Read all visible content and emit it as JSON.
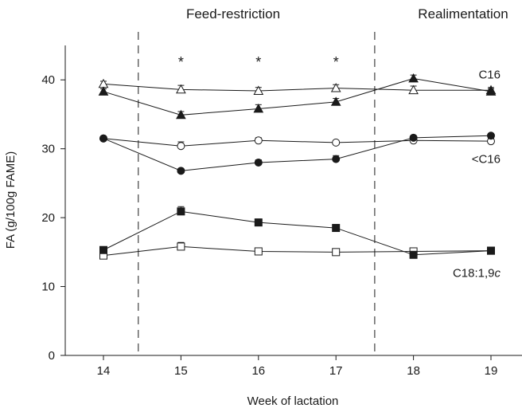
{
  "chart_data": {
    "type": "line",
    "xlabel": "Week of lactation",
    "ylabel": "FA (g/100g FAME)",
    "x": [
      14,
      15,
      16,
      17,
      18,
      19
    ],
    "xlim": [
      13.5,
      19.5
    ],
    "ylim": [
      0,
      45
    ],
    "x_ticks": [
      "14",
      "15",
      "16",
      "17",
      "18",
      "19"
    ],
    "y_ticks": [
      "0",
      "10",
      "20",
      "30",
      "40"
    ],
    "grid": false,
    "phases": [
      {
        "label": "Feed-restriction",
        "start": 14.45,
        "end": 17.5
      },
      {
        "label": "Realimentation",
        "start": 17.5,
        "end": 19.5
      }
    ],
    "significance": [
      {
        "x": 15,
        "label": "*"
      },
      {
        "x": 16,
        "label": "*"
      },
      {
        "x": 17,
        "label": "*"
      }
    ],
    "series": [
      {
        "marker": "triangle",
        "filled": false,
        "values": [
          39.4,
          38.6,
          38.4,
          38.8,
          38.5,
          38.5
        ],
        "err": [
          0.4,
          0.6,
          0.5,
          0.5,
          0.6,
          0.4
        ]
      },
      {
        "marker": "triangle",
        "filled": true,
        "values": [
          38.3,
          34.9,
          35.8,
          36.8,
          40.2,
          38.3
        ],
        "err": [
          0.4,
          0.5,
          0.6,
          0.5,
          0.5,
          0.4
        ]
      },
      {
        "marker": "circle",
        "filled": false,
        "values": [
          31.5,
          30.4,
          31.2,
          30.9,
          31.2,
          31.1
        ],
        "err": [
          0.3,
          0.6,
          0.4,
          0.3,
          0.4,
          0.4
        ]
      },
      {
        "marker": "circle",
        "filled": true,
        "values": [
          31.5,
          26.8,
          28.0,
          28.5,
          31.6,
          31.9
        ],
        "err": [
          0.3,
          0.3,
          0.4,
          0.5,
          0.3,
          0.3
        ]
      },
      {
        "marker": "square",
        "filled": false,
        "values": [
          14.5,
          15.8,
          15.1,
          15.0,
          15.1,
          15.2
        ],
        "err": [
          0.3,
          0.6,
          0.3,
          0.3,
          0.3,
          0.3
        ]
      },
      {
        "marker": "square",
        "filled": true,
        "values": [
          15.3,
          20.9,
          19.3,
          18.5,
          14.6,
          15.2
        ],
        "err": [
          0.3,
          0.7,
          0.5,
          0.5,
          0.4,
          0.3
        ]
      }
    ],
    "annotations": [
      {
        "text": "C16",
        "y": 40.8
      },
      {
        "text": "<C16",
        "y": 28.5
      },
      {
        "text": "C18:1,9",
        "italic_suffix": "c",
        "y": 12.0
      }
    ]
  }
}
